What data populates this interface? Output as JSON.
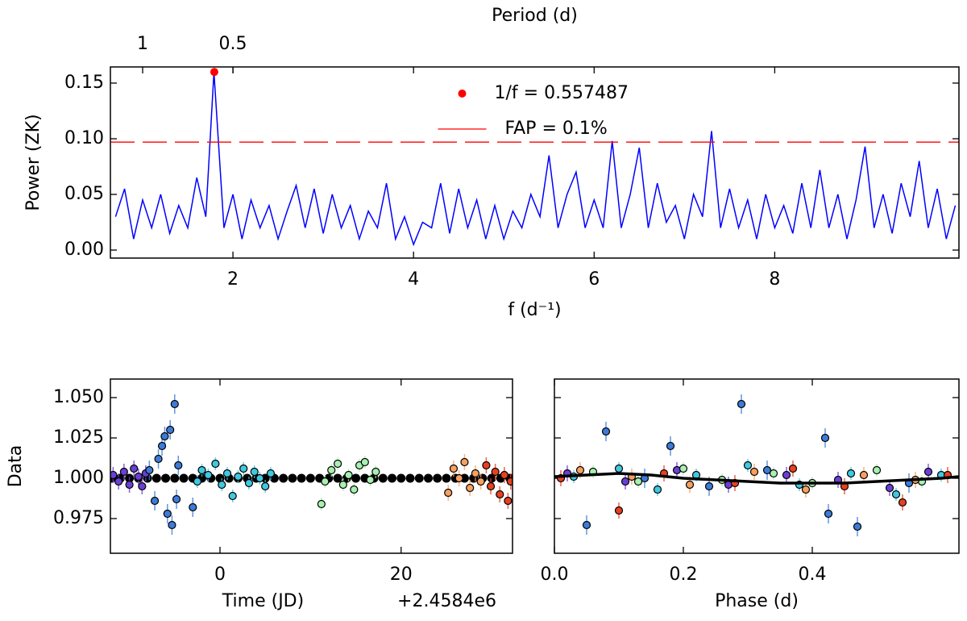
{
  "chart_data": [
    {
      "type": "line",
      "top_label": "Period (d)",
      "x_label": "f (d⁻¹)",
      "y_label": "Power (ZK)",
      "color": "#0000ff",
      "x": [
        0.7,
        0.8,
        0.9,
        1.0,
        1.1,
        1.2,
        1.3,
        1.4,
        1.5,
        1.6,
        1.7,
        1.79,
        1.9,
        2.0,
        2.1,
        2.2,
        2.3,
        2.4,
        2.5,
        2.6,
        2.7,
        2.8,
        2.9,
        3.0,
        3.1,
        3.2,
        3.3,
        3.4,
        3.5,
        3.6,
        3.7,
        3.8,
        3.9,
        4.0,
        4.1,
        4.2,
        4.3,
        4.4,
        4.5,
        4.6,
        4.7,
        4.8,
        4.9,
        5.0,
        5.1,
        5.2,
        5.3,
        5.4,
        5.5,
        5.6,
        5.7,
        5.8,
        5.9,
        6.0,
        6.1,
        6.2,
        6.3,
        6.4,
        6.5,
        6.6,
        6.7,
        6.8,
        6.9,
        7.0,
        7.1,
        7.2,
        7.3,
        7.4,
        7.5,
        7.6,
        7.7,
        7.8,
        7.9,
        8.0,
        8.1,
        8.2,
        8.3,
        8.4,
        8.5,
        8.6,
        8.7,
        8.8,
        8.9,
        9.0,
        9.1,
        9.2,
        9.3,
        9.4,
        9.5,
        9.6,
        9.7,
        9.8,
        9.9,
        10.0
      ],
      "values": [
        0.03,
        0.055,
        0.01,
        0.045,
        0.02,
        0.05,
        0.015,
        0.04,
        0.02,
        0.065,
        0.03,
        0.16,
        0.02,
        0.05,
        0.01,
        0.045,
        0.02,
        0.04,
        0.01,
        0.035,
        0.058,
        0.02,
        0.055,
        0.015,
        0.05,
        0.02,
        0.04,
        0.01,
        0.035,
        0.02,
        0.06,
        0.01,
        0.03,
        0.005,
        0.025,
        0.02,
        0.06,
        0.015,
        0.055,
        0.02,
        0.045,
        0.01,
        0.04,
        0.01,
        0.035,
        0.02,
        0.05,
        0.03,
        0.085,
        0.02,
        0.05,
        0.07,
        0.02,
        0.045,
        0.02,
        0.098,
        0.02,
        0.05,
        0.092,
        0.02,
        0.06,
        0.025,
        0.04,
        0.01,
        0.05,
        0.03,
        0.107,
        0.02,
        0.055,
        0.02,
        0.045,
        0.01,
        0.05,
        0.02,
        0.04,
        0.015,
        0.06,
        0.02,
        0.072,
        0.02,
        0.05,
        0.01,
        0.045,
        0.093,
        0.02,
        0.05,
        0.015,
        0.06,
        0.03,
        0.08,
        0.02,
        0.055,
        0.01,
        0.04
      ],
      "xlim": [
        0.643,
        10.04
      ],
      "ylim": [
        -0.0072,
        0.1645
      ],
      "xticks": [
        2,
        4,
        6,
        8
      ],
      "yticks": [
        {
          "value": 0,
          "label": "0.00"
        },
        {
          "value": 0.05,
          "label": "0.05"
        },
        {
          "value": 0.1,
          "label": "0.10"
        },
        {
          "value": 0.15,
          "label": "0.15"
        }
      ],
      "top_ticks": [
        1,
        0.5
      ],
      "peak": {
        "x": 1.7937,
        "y": 0.16,
        "color": "#ff0000",
        "label": "1/f = 0.557487"
      },
      "threshold": {
        "value": 0.097,
        "color": "#ff0000",
        "label": "FAP = 0.1%"
      },
      "legend": "upper center"
    },
    {
      "type": "scatter",
      "x_label": "Time (JD)",
      "x_offset_label": "+2.4584e6",
      "y_label": "Data",
      "xlim": [
        -12.1,
        32.3
      ],
      "ylim": [
        0.9535,
        1.0615
      ],
      "xticks": [
        0,
        20
      ],
      "yticks": [
        {
          "value": 0.975,
          "label": "0.975"
        },
        {
          "value": 1,
          "label": "1.000"
        },
        {
          "value": 1.025,
          "label": "1.025"
        },
        {
          "value": 1.05,
          "label": "1.050"
        }
      ],
      "model": {
        "style": "markers",
        "color": "#000000",
        "x": [
          -12,
          -11,
          -10,
          -9,
          -8,
          -7,
          -6,
          -5,
          -4,
          -3,
          -2,
          -1,
          0,
          1,
          2,
          3,
          4,
          5,
          6,
          7,
          8,
          9,
          10,
          11,
          12,
          13,
          14,
          15,
          16,
          17,
          18,
          19,
          20,
          21,
          22,
          23,
          24,
          25,
          26,
          27,
          28,
          29,
          30,
          31,
          32
        ],
        "values": [
          1,
          1,
          1,
          1,
          1,
          1,
          1,
          1,
          1,
          1,
          1,
          1,
          1,
          1,
          1,
          1,
          1,
          1,
          1,
          1,
          1,
          1,
          1,
          1,
          1,
          1,
          1,
          1,
          1,
          1,
          1,
          1,
          1,
          1,
          1,
          1,
          1,
          1,
          1,
          1,
          1,
          1,
          1,
          1,
          1
        ]
      },
      "series": [
        {
          "color": "#6a3fd6",
          "error": 0.005,
          "x": [
            -11.8,
            -11.2,
            -10.6,
            -10,
            -9.5,
            -9,
            -8.6,
            -8.2
          ],
          "values": [
            1.002,
            0.998,
            1.004,
            0.996,
            1.006,
            1.001,
            0.995,
            1.003
          ]
        },
        {
          "color": "#3c7bd8",
          "error": 0.006,
          "x": [
            -7.8,
            -7.2,
            -6.8,
            -6.4,
            -6.1,
            -5.8,
            -5.5,
            -5.3,
            -5,
            -4.8,
            -4.6,
            -3
          ],
          "values": [
            1.005,
            0.986,
            1.012,
            1.02,
            1.026,
            0.978,
            1.03,
            0.971,
            1.046,
            0.987,
            1.008,
            0.982
          ]
        },
        {
          "color": "#40c8e0",
          "error": 0.004,
          "x": [
            -2.5,
            -2,
            -1.3,
            -0.5,
            0.2,
            0.8,
            1.4,
            2,
            2.6,
            3.2,
            3.8,
            4.4,
            5,
            5.6
          ],
          "values": [
            0.998,
            1.005,
            1.002,
            1.009,
            0.996,
            1.003,
            0.989,
            1.001,
            1.006,
            0.997,
            1.004,
            1,
            0.995,
            1.003
          ]
        },
        {
          "color": "#a8f0b0",
          "error": 0.004,
          "x": [
            11.2,
            11.6,
            12.3,
            13,
            13.6,
            14.2,
            14.8,
            15.4,
            16,
            16.6,
            17.2
          ],
          "values": [
            0.984,
            0.998,
            1.005,
            1.009,
            0.996,
            1.002,
            0.993,
            1.008,
            1.01,
            0.999,
            1.004
          ]
        },
        {
          "color": "#f8a060",
          "error": 0.005,
          "x": [
            25.2,
            25.8,
            26.4,
            27,
            27.6,
            28.2,
            28.8
          ],
          "values": [
            0.991,
            1.006,
            1,
            1.01,
            0.994,
            1.003,
            0.998
          ]
        },
        {
          "color": "#e84020",
          "error": 0.005,
          "x": [
            29.4,
            29.9,
            30.4,
            30.9,
            31.4,
            31.8,
            32.1
          ],
          "values": [
            1.008,
            0.995,
            1.004,
            0.99,
            1.002,
            0.986,
            0.998
          ]
        }
      ]
    },
    {
      "type": "scatter",
      "x_label": "Phase (d)",
      "xlim": [
        0,
        0.6275
      ],
      "ylim": [
        0.9535,
        1.0615
      ],
      "xticks": [
        {
          "value": 0,
          "label": "0.0"
        },
        {
          "value": 0.2,
          "label": "0.2"
        },
        {
          "value": 0.4,
          "label": "0.4"
        }
      ],
      "yticks": [
        0.975,
        1,
        1.025,
        1.05
      ],
      "show_ytick_labels": false,
      "model": {
        "style": "line",
        "color": "#000000",
        "x": [
          0,
          0.05,
          0.1,
          0.15,
          0.2,
          0.25,
          0.3,
          0.35,
          0.4,
          0.45,
          0.5,
          0.55,
          0.6,
          0.6275
        ],
        "values": [
          1.001,
          1.002,
          1.003,
          1.002,
          1,
          0.999,
          0.998,
          0.997,
          0.997,
          0.997,
          0.998,
          0.999,
          1,
          1.001
        ]
      },
      "series": [
        {
          "color": "#6a3fd6",
          "error": 0.005,
          "x": [
            0.02,
            0.11,
            0.19,
            0.27,
            0.36,
            0.44,
            0.52,
            0.58
          ],
          "values": [
            1.003,
            0.998,
            1.005,
            0.996,
            1.002,
            0.999,
            0.994,
            1.004
          ]
        },
        {
          "color": "#3c7bd8",
          "error": 0.006,
          "x": [
            0.05,
            0.08,
            0.14,
            0.18,
            0.24,
            0.29,
            0.33,
            0.42,
            0.425,
            0.47,
            0.55
          ],
          "values": [
            0.971,
            1.029,
            1,
            1.02,
            0.995,
            1.046,
            1.005,
            1.025,
            0.978,
            0.97,
            0.997
          ]
        },
        {
          "color": "#40c8e0",
          "error": 0.004,
          "x": [
            0.03,
            0.1,
            0.16,
            0.22,
            0.3,
            0.38,
            0.46,
            0.53,
            0.6
          ],
          "values": [
            1.001,
            1.006,
            0.993,
            1.002,
            1.008,
            0.996,
            1.003,
            0.99,
            1.002
          ]
        },
        {
          "color": "#a8f0b0",
          "error": 0.004,
          "x": [
            0.06,
            0.13,
            0.2,
            0.26,
            0.34,
            0.4,
            0.5,
            0.57
          ],
          "values": [
            1.004,
            0.998,
            1.006,
            0.999,
            1.003,
            0.997,
            1.005,
            0.998
          ]
        },
        {
          "color": "#f8a060",
          "error": 0.005,
          "x": [
            0.04,
            0.12,
            0.21,
            0.31,
            0.39,
            0.48,
            0.56
          ],
          "values": [
            1.005,
            1.001,
            0.996,
            1.004,
            0.993,
            1.002,
            0.999
          ]
        },
        {
          "color": "#e84020",
          "error": 0.005,
          "x": [
            0.01,
            0.1,
            0.17,
            0.28,
            0.37,
            0.45,
            0.54,
            0.61
          ],
          "values": [
            1,
            0.98,
            1.003,
            0.997,
            1.006,
            0.995,
            0.985,
            1.002
          ]
        }
      ]
    }
  ]
}
